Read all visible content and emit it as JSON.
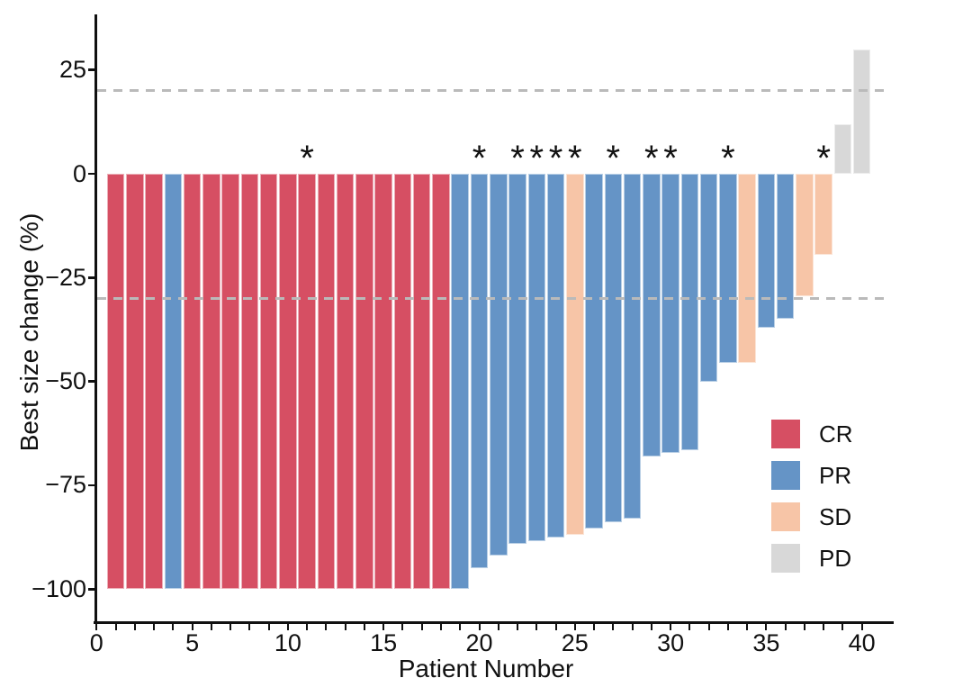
{
  "colors": {
    "CR": "#D64F63",
    "PR": "#6594C6",
    "SD": "#F7C5A7",
    "PD": "#D8D8D8",
    "reference_line": "#BABABA",
    "axis": "#111111",
    "background": "#FFFFFF"
  },
  "legend": {
    "items": [
      {
        "label": "CR",
        "color": "#D64F63"
      },
      {
        "label": "PR",
        "color": "#6594C6"
      },
      {
        "label": "SD",
        "color": "#F7C5A7"
      },
      {
        "label": "PD",
        "color": "#D8D8D8"
      }
    ]
  },
  "chart_data": {
    "type": "bar",
    "title": "",
    "xlabel": "Patient Number",
    "ylabel": "Best size change (%)",
    "patients": [
      1,
      2,
      3,
      4,
      5,
      6,
      7,
      8,
      9,
      10,
      11,
      12,
      13,
      14,
      15,
      16,
      17,
      18,
      19,
      20,
      21,
      22,
      23,
      24,
      25,
      26,
      27,
      28,
      29,
      30,
      31,
      32,
      33,
      34,
      35,
      36,
      37,
      38,
      39,
      40
    ],
    "values": [
      -100,
      -100,
      -100,
      -100,
      -100,
      -100,
      -100,
      -100,
      -100,
      -100,
      -100,
      -100,
      -100,
      -100,
      -100,
      -100,
      -100,
      -100,
      -100,
      -95,
      -92,
      -89,
      -88.5,
      -87.5,
      -87,
      -85.5,
      -84,
      -83,
      -68,
      -67.3,
      -66.5,
      -50,
      -45.5,
      -45.5,
      -37,
      -35,
      -29.5,
      -19.5,
      12,
      30
    ],
    "response": [
      "CR",
      "CR",
      "CR",
      "PR",
      "CR",
      "CR",
      "CR",
      "CR",
      "CR",
      "CR",
      "CR",
      "CR",
      "CR",
      "CR",
      "CR",
      "CR",
      "CR",
      "CR",
      "PR",
      "PR",
      "PR",
      "PR",
      "PR",
      "PR",
      "SD",
      "PR",
      "PR",
      "PR",
      "PR",
      "PR",
      "PR",
      "PR",
      "PR",
      "SD",
      "PR",
      "PR",
      "SD",
      "SD",
      "PD",
      "PD"
    ],
    "starred_patients": [
      11,
      20,
      22,
      23,
      24,
      25,
      27,
      29,
      30,
      33,
      38
    ],
    "star_symbol": "*",
    "reference_lines": [
      20,
      -30
    ],
    "y_ticks": [
      25,
      0,
      -25,
      -50,
      -75,
      -100
    ],
    "y_tick_labels": [
      "25",
      "0",
      "−25",
      "−50",
      "−75",
      "−100"
    ],
    "x_major_ticks": [
      0,
      5,
      10,
      15,
      20,
      25,
      30,
      35,
      40
    ],
    "x_minor_tick_every": 1,
    "xlim": [
      0,
      41.6
    ],
    "ylim": [
      -107.5,
      37
    ],
    "grid": "off",
    "legend_position": "inside-lower-right"
  }
}
